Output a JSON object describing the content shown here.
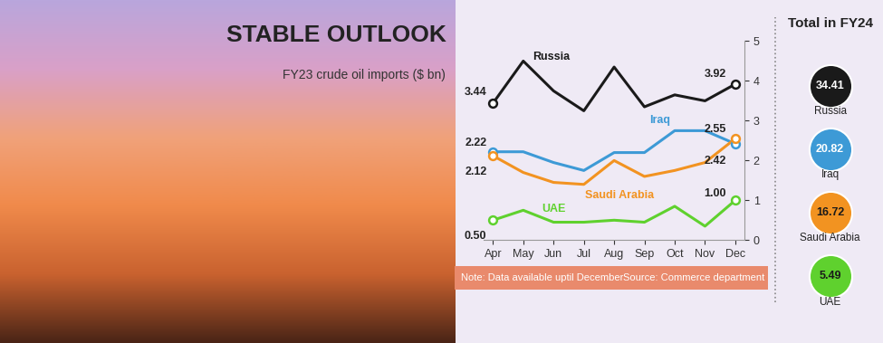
{
  "chart_data": {
    "type": "line",
    "title": "STABLE OUTLOOK",
    "subtitle": "FY23 crude oil imports ($ bn)",
    "categories": [
      "Apr",
      "May",
      "Jun",
      "Jul",
      "Aug",
      "Sep",
      "Oct",
      "Nov",
      "Dec"
    ],
    "series": [
      {
        "name": "Russia",
        "color": "#1a1a1a",
        "values": [
          3.44,
          4.5,
          3.75,
          3.25,
          4.35,
          3.35,
          3.65,
          3.5,
          3.92
        ]
      },
      {
        "name": "Iraq",
        "color": "#3d9ad6",
        "values": [
          2.22,
          2.22,
          1.95,
          1.75,
          2.2,
          2.2,
          2.75,
          2.75,
          2.42
        ]
      },
      {
        "name": "Saudi Arabia",
        "color": "#f29321",
        "values": [
          2.12,
          1.7,
          1.45,
          1.4,
          2.0,
          1.6,
          1.75,
          1.95,
          2.55
        ]
      },
      {
        "name": "UAE",
        "color": "#5fd12e",
        "values": [
          0.5,
          0.75,
          0.45,
          0.45,
          0.5,
          0.45,
          0.85,
          0.35,
          1.0
        ]
      }
    ],
    "ylim": [
      0,
      5
    ],
    "yticks": [
      0,
      1,
      2,
      3,
      4,
      5
    ],
    "annotations": [
      {
        "series": "Russia",
        "category": "Apr",
        "label": "3.44"
      },
      {
        "series": "Russia",
        "category": "Dec",
        "label": "3.92"
      },
      {
        "series": "Iraq",
        "category": "Apr",
        "label": "2.22"
      },
      {
        "series": "Saudi Arabia",
        "category": "Apr",
        "label": "2.12"
      },
      {
        "series": "Saudi Arabia",
        "category": "Dec",
        "label": "2.55"
      },
      {
        "series": "Iraq",
        "category": "Dec",
        "label": "2.42"
      },
      {
        "series": "UAE",
        "category": "Apr",
        "label": "0.50"
      },
      {
        "series": "UAE",
        "category": "Dec",
        "label": "1.00"
      }
    ],
    "note": "Note: Data available uptil December",
    "source": "Source: Commerce department",
    "totals": {
      "title": "Total in FY24",
      "items": [
        {
          "name": "Russia",
          "value": 34.41
        },
        {
          "name": "Iraq",
          "value": 20.82
        },
        {
          "name": "Saudi Arabia",
          "value": 16.72
        },
        {
          "name": "UAE",
          "value": 5.49
        }
      ]
    }
  }
}
